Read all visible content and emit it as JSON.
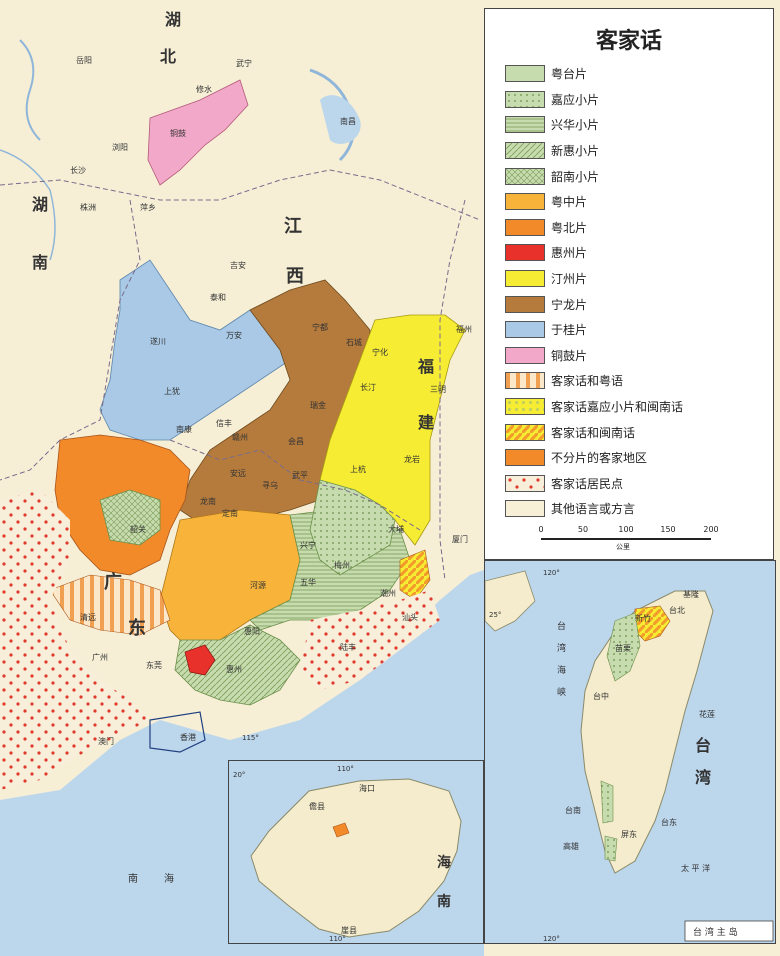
{
  "legend": {
    "title": "客家话",
    "items": [
      {
        "label": "粤台片",
        "color": "#c7dcae",
        "pattern": "solid"
      },
      {
        "label": "嘉应小片",
        "color": "#c7dcae",
        "pattern": "dots"
      },
      {
        "label": "兴华小片",
        "color": "#c7dcae",
        "pattern": "hlines"
      },
      {
        "label": "新惠小片",
        "color": "#c7dcae",
        "pattern": "diag"
      },
      {
        "label": "韶南小片",
        "color": "#c7dcae",
        "pattern": "cross"
      },
      {
        "label": "粤中片",
        "color": "#f8b43a",
        "pattern": "solid"
      },
      {
        "label": "粤北片",
        "color": "#f28a2a",
        "pattern": "solid"
      },
      {
        "label": "惠州片",
        "color": "#e8312a",
        "pattern": "solid"
      },
      {
        "label": "汀州片",
        "color": "#f5ec33",
        "pattern": "solid"
      },
      {
        "label": "宁龙片",
        "color": "#b57b3c",
        "pattern": "solid"
      },
      {
        "label": "于桂片",
        "color": "#a9c9e6",
        "pattern": "solid"
      },
      {
        "label": "铜鼓片",
        "color": "#f2a8c8",
        "pattern": "solid"
      },
      {
        "label": "客家话和粤语",
        "color": "#f6d6b0",
        "pattern": "vstripes"
      },
      {
        "label": "客家话嘉应小片和闽南话",
        "color": "#f5ec33",
        "pattern": "dots-green"
      },
      {
        "label": "客家话和闽南话",
        "color": "#f8b43a",
        "pattern": "diagstripes"
      },
      {
        "label": "不分片的客家地区",
        "color": "#f28a2a",
        "pattern": "solid"
      },
      {
        "label": "客家话居民点",
        "color": "#f5efda",
        "pattern": "reddots"
      },
      {
        "label": "其他语言或方言",
        "color": "#f7f0d6",
        "pattern": "solid"
      }
    ]
  },
  "scale": {
    "ticks": [
      "0",
      "50",
      "100",
      "150",
      "200"
    ],
    "unit": "公里"
  },
  "regions": {
    "hubei": [
      "湖",
      "北"
    ],
    "hunan": [
      "湖",
      "南"
    ],
    "jiangxi": [
      "江",
      "西"
    ],
    "fujian": [
      "福",
      "建"
    ],
    "guangdong": [
      "广",
      "东"
    ],
    "taiwan": [
      "台",
      "湾"
    ],
    "hainan": [
      "海",
      "南"
    ]
  },
  "seas": {
    "south_sea": [
      "南",
      "海"
    ],
    "taiwan_strait": [
      "台",
      "湾",
      "海",
      "峡"
    ],
    "pacific": "太 平 洋"
  },
  "cities": {
    "yueyang": "岳阳",
    "changsha": "长沙",
    "nanchang": "南昌",
    "fuzhou": "福州",
    "guangzhou": "广州",
    "meizhou": "梅州",
    "shantou": "汕头",
    "ganzhou": "赣州",
    "longyan": "龙岩",
    "xiamen": "厦门",
    "chaozhou": "潮州",
    "huizhou": "惠州",
    "heyuan": "河源",
    "shaoguan": "韶关",
    "zhuzhou": "株洲",
    "ji_an": "吉安",
    "sanming": "三明",
    "macau": "澳门",
    "hongkong": "香港",
    "haikou": "海口",
    "danzhou": "儋县",
    "sanya": "崖县",
    "taibei": "台北",
    "taizhong": "台中",
    "tainan": "台南",
    "gaoxiong": "高雄",
    "hualian": "花莲",
    "taidong": "台东",
    "xinzhu": "新竹",
    "miaoli": "苗栗",
    "pingdong": "屏东",
    "jilong": "基隆",
    "wuping": "武平",
    "shanghang": "上杭",
    "changting": "长汀",
    "xingning": "兴宁",
    "dabu": "大埔",
    "wuhua": "五华",
    "lufeng": "陆丰",
    "huiyang": "惠阳",
    "dongguan": "东莞",
    "qingyuan": "清远",
    "ningdu": "宁都",
    "shicheng": "石城",
    "ruijin": "瑞金",
    "ninghua": "宁化",
    "huichang": "会昌",
    "xunwu": "寻乌",
    "anyuan": "安远",
    "longnan": "龙南",
    "dingnan": "定南",
    "xinfeng": "信丰",
    "nankang": "南康",
    "shangyou": "上犹",
    "suichuan": "遂川",
    "taihe": "泰和",
    "wanan": "万安",
    "tonggu": "铜鼓",
    "wuning": "武宁",
    "xiushui": "修水",
    "pingxiang": "萍乡",
    "liuyang": "浏阳"
  },
  "coords": {
    "inset_hainan_110a": "110°",
    "inset_hainan_110b": "110°",
    "inset_hainan_20": "20°",
    "inset_taiwan_120a": "120°",
    "inset_taiwan_120b": "120°",
    "inset_taiwan_25": "25°",
    "main_115": "115°"
  },
  "inset_caption": "台 湾 主 岛"
}
